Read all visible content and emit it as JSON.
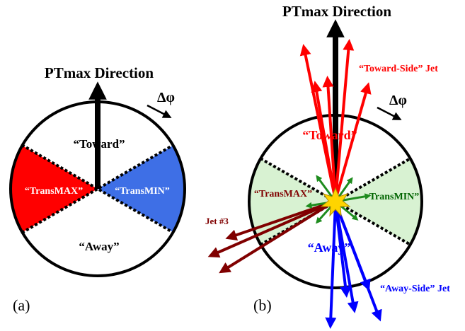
{
  "colors": {
    "transmax_fill_a": "#ff0000",
    "transmin_fill_a": "#3e6fe6",
    "transverse_fill_b": "#d8f2d2",
    "toward_text": "#ff0000",
    "away_text": "#0000ff",
    "transmax_text_b": "#800000",
    "transmin_text_b": "#006400",
    "toward_jet": "#ff0000",
    "away_jet": "#0000ff",
    "jet3": "#800000",
    "burst": "#ffd400"
  },
  "panel_a": {
    "caption": "(a)",
    "arrow_label": "PTmax Direction",
    "dphi_label": "Δφ",
    "regions": {
      "toward": "“Toward”",
      "transmax": "“TransMAX”",
      "transmin": "“TransMIN”",
      "away": "“Away”"
    }
  },
  "panel_b": {
    "caption": "(b)",
    "arrow_label": "PTmax Direction",
    "dphi_label": "Δφ",
    "regions": {
      "toward": "“Toward”",
      "transmax": "“TransMAX”",
      "transmin": "TransMIN”",
      "away": "“Away”"
    },
    "jets": {
      "toward_side": "“Toward-Side” Jet",
      "away_side": "“Away-Side” Jet",
      "jet3": "Jet #3"
    }
  }
}
